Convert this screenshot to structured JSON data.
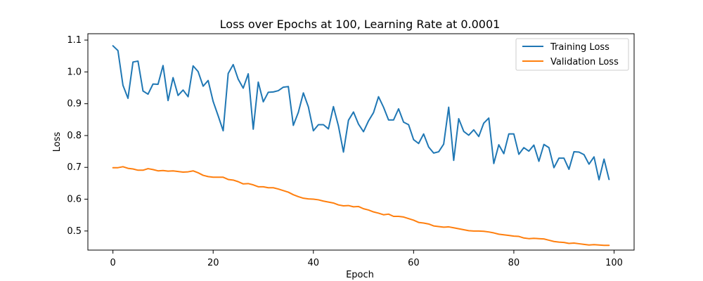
{
  "chart_data": {
    "type": "line",
    "title": "Loss over Epochs at 100, Learning Rate at 0.0001",
    "xlabel": "Epoch",
    "ylabel": "Loss",
    "xlim": [
      -5,
      104
    ],
    "ylim": [
      0.44,
      1.12
    ],
    "xticks": [
      0,
      20,
      40,
      60,
      80,
      100
    ],
    "yticks": [
      0.5,
      0.6,
      0.7,
      0.8,
      0.9,
      1.0,
      1.1
    ],
    "ytick_labels": [
      "0.5",
      "0.6",
      "0.7",
      "0.8",
      "0.9",
      "1.0",
      "1.1"
    ],
    "grid": false,
    "legend_position": "top-right",
    "x": [
      0,
      1,
      2,
      3,
      4,
      5,
      6,
      7,
      8,
      9,
      10,
      11,
      12,
      13,
      14,
      15,
      16,
      17,
      18,
      19,
      20,
      21,
      22,
      23,
      24,
      25,
      26,
      27,
      28,
      29,
      30,
      31,
      32,
      33,
      34,
      35,
      36,
      37,
      38,
      39,
      40,
      41,
      42,
      43,
      44,
      45,
      46,
      47,
      48,
      49,
      50,
      51,
      52,
      53,
      54,
      55,
      56,
      57,
      58,
      59,
      60,
      61,
      62,
      63,
      64,
      65,
      66,
      67,
      68,
      69,
      70,
      71,
      72,
      73,
      74,
      75,
      76,
      77,
      78,
      79,
      80,
      81,
      82,
      83,
      84,
      85,
      86,
      87,
      88,
      89,
      90,
      91,
      92,
      93,
      94,
      95,
      96,
      97,
      98,
      99
    ],
    "series": [
      {
        "name": "Training Loss",
        "color": "#1f77b4",
        "values": [
          1.082,
          1.067,
          0.958,
          0.917,
          1.031,
          1.034,
          0.94,
          0.93,
          0.962,
          0.961,
          1.02,
          0.91,
          0.982,
          0.926,
          0.943,
          0.922,
          1.019,
          1.001,
          0.955,
          0.973,
          0.907,
          0.862,
          0.815,
          0.995,
          1.023,
          0.977,
          0.949,
          0.994,
          0.82,
          0.968,
          0.906,
          0.936,
          0.937,
          0.941,
          0.952,
          0.954,
          0.832,
          0.873,
          0.934,
          0.89,
          0.815,
          0.834,
          0.834,
          0.821,
          0.891,
          0.83,
          0.748,
          0.848,
          0.874,
          0.836,
          0.812,
          0.846,
          0.872,
          0.922,
          0.889,
          0.849,
          0.849,
          0.884,
          0.842,
          0.834,
          0.787,
          0.775,
          0.805,
          0.764,
          0.745,
          0.749,
          0.773,
          0.889,
          0.722,
          0.853,
          0.813,
          0.801,
          0.818,
          0.797,
          0.839,
          0.855,
          0.712,
          0.771,
          0.743,
          0.805,
          0.805,
          0.741,
          0.762,
          0.751,
          0.77,
          0.719,
          0.772,
          0.762,
          0.699,
          0.729,
          0.729,
          0.694,
          0.749,
          0.748,
          0.74,
          0.71,
          0.733,
          0.661,
          0.726,
          0.662
        ]
      },
      {
        "name": "Validation Loss",
        "color": "#ff7f0e",
        "values": [
          0.699,
          0.699,
          0.702,
          0.697,
          0.695,
          0.691,
          0.691,
          0.696,
          0.693,
          0.689,
          0.69,
          0.688,
          0.689,
          0.687,
          0.685,
          0.686,
          0.689,
          0.683,
          0.675,
          0.671,
          0.669,
          0.669,
          0.669,
          0.662,
          0.66,
          0.655,
          0.648,
          0.649,
          0.645,
          0.639,
          0.639,
          0.636,
          0.636,
          0.632,
          0.627,
          0.622,
          0.614,
          0.608,
          0.603,
          0.601,
          0.6,
          0.598,
          0.594,
          0.591,
          0.588,
          0.582,
          0.579,
          0.58,
          0.576,
          0.577,
          0.57,
          0.566,
          0.56,
          0.556,
          0.551,
          0.553,
          0.546,
          0.546,
          0.544,
          0.539,
          0.534,
          0.527,
          0.525,
          0.522,
          0.516,
          0.514,
          0.512,
          0.513,
          0.51,
          0.507,
          0.504,
          0.501,
          0.5,
          0.5,
          0.499,
          0.497,
          0.494,
          0.49,
          0.488,
          0.486,
          0.484,
          0.483,
          0.478,
          0.476,
          0.477,
          0.476,
          0.475,
          0.471,
          0.467,
          0.465,
          0.464,
          0.461,
          0.462,
          0.46,
          0.458,
          0.456,
          0.457,
          0.456,
          0.455,
          0.455
        ]
      }
    ]
  }
}
